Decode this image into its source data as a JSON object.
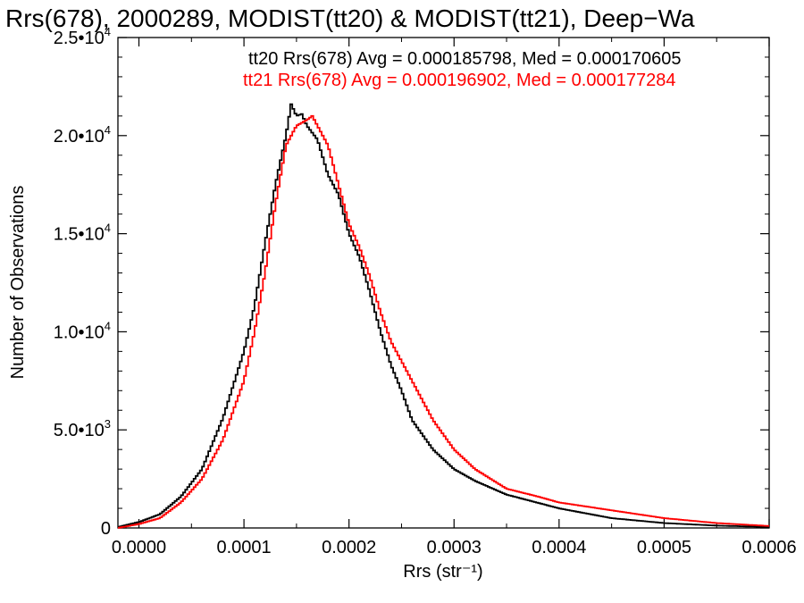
{
  "chart_data": {
    "type": "line",
    "title": "Rrs(678), 2000289, MODIST(tt20) & MODIST(tt21), Deep−Wa",
    "xlabel": "Rrs (str⁻¹)",
    "ylabel": "Number of Observations",
    "xlim": [
      -2e-05,
      0.0006
    ],
    "ylim": [
      0,
      25000
    ],
    "x_ticks": [
      {
        "value": 0.0,
        "label": "0.0000"
      },
      {
        "value": 0.0001,
        "label": "0.0001"
      },
      {
        "value": 0.0002,
        "label": "0.0002"
      },
      {
        "value": 0.0003,
        "label": "0.0003"
      },
      {
        "value": 0.0004,
        "label": "0.0004"
      },
      {
        "value": 0.0005,
        "label": "0.0005"
      },
      {
        "value": 0.0006,
        "label": "0.0006"
      }
    ],
    "y_ticks": [
      {
        "value": 0,
        "mant": "0",
        "exp": ""
      },
      {
        "value": 5000,
        "mant": "5.0•10",
        "exp": "3"
      },
      {
        "value": 10000,
        "mant": "1.0•10",
        "exp": "4"
      },
      {
        "value": 15000,
        "mant": "1.5•10",
        "exp": "4"
      },
      {
        "value": 20000,
        "mant": "2.0•10",
        "exp": "4"
      },
      {
        "value": 25000,
        "mant": "2.5•10",
        "exp": "4"
      }
    ],
    "legend": [
      {
        "text": "tt20 Rrs(678) Avg = 0.000185798, Med = 0.000170605",
        "color": "#000000"
      },
      {
        "text": "tt21 Rrs(678) Avg = 0.000196902, Med = 0.000177284",
        "color": "#ff0000"
      }
    ],
    "series": [
      {
        "color": "#000000",
        "style": "step",
        "points": [
          [
            -2e-05,
            50
          ],
          [
            0.0,
            300
          ],
          [
            2e-05,
            700
          ],
          [
            4e-05,
            1600
          ],
          [
            6e-05,
            3000
          ],
          [
            8e-05,
            5600
          ],
          [
            0.0001,
            9000
          ],
          [
            0.00011,
            11300
          ],
          [
            0.00012,
            14500
          ],
          [
            0.00013,
            17500
          ],
          [
            0.00014,
            20000
          ],
          [
            0.000145,
            21600
          ],
          [
            0.00015,
            21000
          ],
          [
            0.000155,
            21100
          ],
          [
            0.00016,
            20500
          ],
          [
            0.00017,
            19800
          ],
          [
            0.00018,
            18000
          ],
          [
            0.00019,
            17000
          ],
          [
            0.0002,
            15000
          ],
          [
            0.00021,
            13800
          ],
          [
            0.00022,
            12000
          ],
          [
            0.00023,
            10000
          ],
          [
            0.00024,
            8300
          ],
          [
            0.00025,
            7000
          ],
          [
            0.00026,
            5500
          ],
          [
            0.00028,
            4000
          ],
          [
            0.0003,
            3000
          ],
          [
            0.00032,
            2400
          ],
          [
            0.00035,
            1700
          ],
          [
            0.0004,
            1000
          ],
          [
            0.00045,
            500
          ],
          [
            0.0005,
            250
          ],
          [
            0.00055,
            120
          ],
          [
            0.0006,
            50
          ]
        ]
      },
      {
        "color": "#ff0000",
        "style": "step",
        "points": [
          [
            -2e-05,
            0
          ],
          [
            0.0,
            200
          ],
          [
            2e-05,
            500
          ],
          [
            4e-05,
            1300
          ],
          [
            6e-05,
            2500
          ],
          [
            8e-05,
            4500
          ],
          [
            0.0001,
            7500
          ],
          [
            0.00011,
            10000
          ],
          [
            0.00012,
            13000
          ],
          [
            0.00013,
            16500
          ],
          [
            0.00014,
            19500
          ],
          [
            0.00015,
            20500
          ],
          [
            0.00016,
            20800
          ],
          [
            0.000165,
            21000
          ],
          [
            0.00017,
            20500
          ],
          [
            0.00018,
            19500
          ],
          [
            0.00019,
            17500
          ],
          [
            0.0002,
            15500
          ],
          [
            0.00021,
            14300
          ],
          [
            0.00022,
            12800
          ],
          [
            0.00023,
            11000
          ],
          [
            0.00024,
            9500
          ],
          [
            0.00025,
            8500
          ],
          [
            0.00026,
            7500
          ],
          [
            0.00028,
            5500
          ],
          [
            0.0003,
            4000
          ],
          [
            0.00032,
            3000
          ],
          [
            0.00035,
            2000
          ],
          [
            0.00038,
            1600
          ],
          [
            0.0004,
            1300
          ],
          [
            0.00045,
            900
          ],
          [
            0.0005,
            500
          ],
          [
            0.00055,
            250
          ],
          [
            0.0006,
            100
          ]
        ]
      }
    ]
  }
}
